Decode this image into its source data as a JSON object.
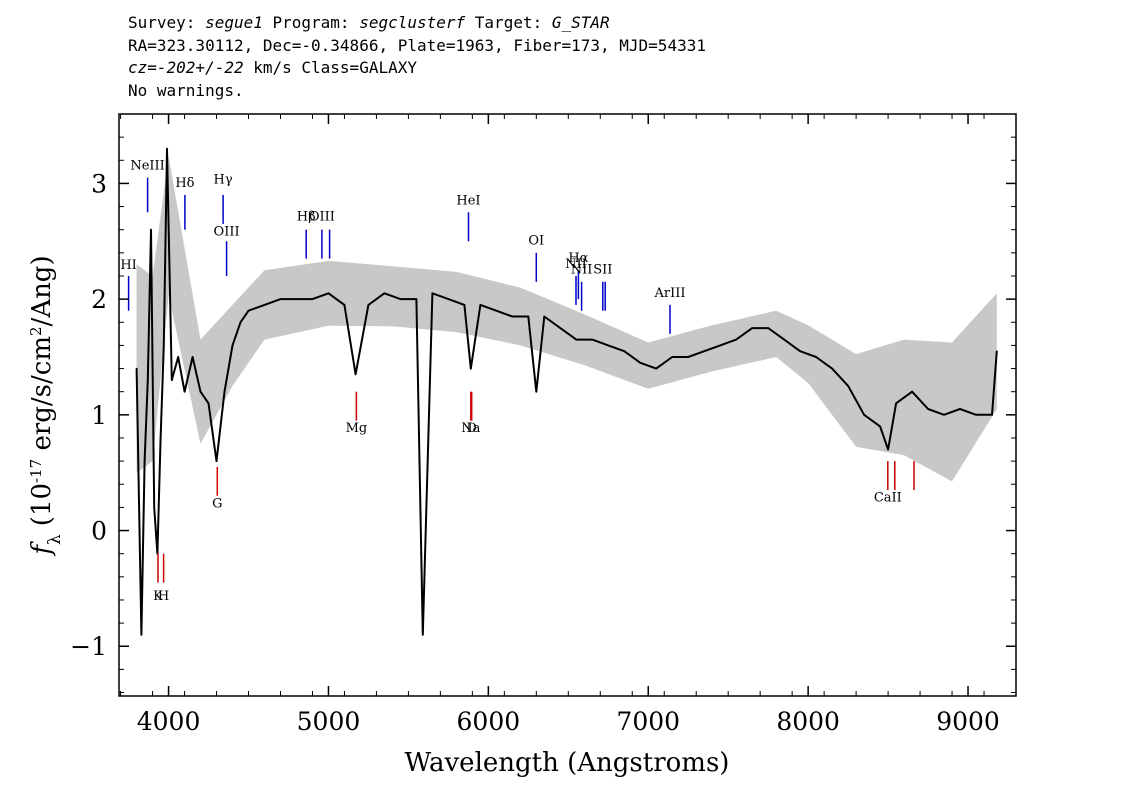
{
  "header": {
    "survey_label": "Survey: ",
    "survey": "segue1",
    "program_label": " Program: ",
    "program": "segclusterf",
    "target_label": " Target: ",
    "target": "G_STAR",
    "line2": "RA=323.30112, Dec=-0.34866, Plate=1963, Fiber=173, MJD=54331",
    "cz_prefix": "cz",
    "cz_value": "=-202+/-22",
    "cz_units": " km/s Class=GALAXY",
    "warnings": "No warnings."
  },
  "chart_data": {
    "type": "line",
    "title": "",
    "xlabel": "Wavelength (Angstroms)",
    "ylabel": "f",
    "ylabel_sub": "λ",
    "ylabel_units": "(10",
    "ylabel_exp": "-17",
    "ylabel_units2": " erg/s/cm",
    "ylabel_exp2": "2",
    "ylabel_units3": "/Ang)",
    "xlim": [
      3690,
      9300
    ],
    "ylim": [
      -1.43,
      3.6
    ],
    "x_ticks": [
      4000,
      5000,
      6000,
      7000,
      8000,
      9000
    ],
    "y_ticks": [
      -1,
      0,
      1,
      2,
      3
    ],
    "x_tick_labels": [
      "4000",
      "5000",
      "6000",
      "7000",
      "8000",
      "9000"
    ],
    "y_tick_labels": [
      "−1",
      "0",
      "1",
      "2",
      "3"
    ],
    "grid": false,
    "series": [
      {
        "role": "flux",
        "color": "#000000",
        "x": [
          3800,
          3830,
          3850,
          3870,
          3890,
          3910,
          3930,
          3950,
          3970,
          3990,
          4020,
          4060,
          4100,
          4150,
          4200,
          4250,
          4300,
          4350,
          4400,
          4450,
          4500,
          4600,
          4700,
          4800,
          4900,
          5000,
          5100,
          5170,
          5250,
          5350,
          5450,
          5550,
          5590,
          5650,
          5750,
          5850,
          5890,
          5950,
          6050,
          6150,
          6250,
          6300,
          6350,
          6450,
          6550,
          6650,
          6750,
          6850,
          6950,
          7050,
          7150,
          7250,
          7350,
          7450,
          7550,
          7650,
          7750,
          7850,
          7950,
          8050,
          8150,
          8250,
          8350,
          8450,
          8500,
          8550,
          8650,
          8750,
          8850,
          8950,
          9050,
          9150,
          9180
        ],
        "y": [
          1.4,
          -0.9,
          0.6,
          1.3,
          2.6,
          0.2,
          -0.2,
          0.8,
          1.6,
          3.3,
          1.3,
          1.5,
          1.2,
          1.5,
          1.2,
          1.1,
          0.6,
          1.2,
          1.6,
          1.8,
          1.9,
          1.95,
          2.0,
          2.0,
          2.0,
          2.05,
          1.95,
          1.35,
          1.95,
          2.05,
          2.0,
          2.0,
          -0.9,
          2.05,
          2.0,
          1.95,
          1.4,
          1.95,
          1.9,
          1.85,
          1.85,
          1.2,
          1.85,
          1.75,
          1.65,
          1.65,
          1.6,
          1.55,
          1.45,
          1.4,
          1.5,
          1.5,
          1.55,
          1.6,
          1.65,
          1.75,
          1.75,
          1.65,
          1.55,
          1.5,
          1.4,
          1.25,
          1.0,
          0.9,
          0.7,
          1.1,
          1.2,
          1.05,
          1.0,
          1.05,
          1.0,
          1.0,
          1.55
        ]
      }
    ],
    "error_band": {
      "color": "#c8c8c8",
      "x": [
        3800,
        3900,
        4000,
        4200,
        4400,
        4600,
        5000,
        5400,
        5800,
        6200,
        6600,
        7000,
        7400,
        7800,
        8000,
        8300,
        8600,
        8900,
        9180
      ],
      "half_width": [
        0.9,
        0.8,
        0.6,
        0.45,
        0.35,
        0.3,
        0.28,
        0.26,
        0.26,
        0.25,
        0.22,
        0.2,
        0.2,
        0.2,
        0.25,
        0.4,
        0.5,
        0.6,
        0.5
      ]
    },
    "emission_lines": [
      {
        "label": "HI",
        "x": 3750,
        "y1": 1.9,
        "y2": 2.2,
        "ty": 2.26,
        "color": "#0000cc"
      },
      {
        "label": "NeIII",
        "x": 3869,
        "y1": 2.75,
        "y2": 3.05,
        "ty": 3.12,
        "color": "#0000cc"
      },
      {
        "label": "Hδ",
        "x": 4102,
        "y1": 2.6,
        "y2": 2.9,
        "ty": 2.97,
        "color": "#0000cc"
      },
      {
        "label": "Hγ",
        "x": 4341,
        "y1": 2.65,
        "y2": 2.9,
        "ty": 3.0,
        "color": "#0000cc"
      },
      {
        "label": "OIII",
        "x": 4363,
        "y1": 2.2,
        "y2": 2.5,
        "ty": 2.55,
        "color": "#0000cc"
      },
      {
        "label": "Hβ",
        "x": 4861,
        "y1": 2.35,
        "y2": 2.6,
        "ty": 2.68,
        "color": "#0000cc"
      },
      {
        "label": "OIII",
        "x": 4959,
        "y1": 2.35,
        "y2": 2.6,
        "ty": 2.68,
        "color": "#0000cc"
      },
      {
        "label": "",
        "x": 5007,
        "y1": 2.35,
        "y2": 2.6,
        "ty": 2.68,
        "color": "#0000cc"
      },
      {
        "label": "HeI",
        "x": 5876,
        "y1": 2.5,
        "y2": 2.75,
        "ty": 2.82,
        "color": "#0000cc"
      },
      {
        "label": "OI",
        "x": 6300,
        "y1": 2.15,
        "y2": 2.4,
        "ty": 2.47,
        "color": "#0000cc"
      },
      {
        "label": "NII",
        "x": 6548,
        "y1": 1.95,
        "y2": 2.2,
        "ty": 2.27,
        "color": "#0000cc"
      },
      {
        "label": "Hα",
        "x": 6563,
        "y1": 2.0,
        "y2": 2.25,
        "ty": 2.32,
        "color": "#0000cc"
      },
      {
        "label": "NII",
        "x": 6583,
        "y1": 1.9,
        "y2": 2.15,
        "ty": 2.22,
        "color": "#0000cc"
      },
      {
        "label": "SII",
        "x": 6716,
        "y1": 1.9,
        "y2": 2.15,
        "ty": 2.22,
        "color": "#0000cc"
      },
      {
        "label": "",
        "x": 6731,
        "y1": 1.9,
        "y2": 2.15,
        "ty": 2.22,
        "color": "#0000cc"
      },
      {
        "label": "ArIII",
        "x": 7136,
        "y1": 1.7,
        "y2": 1.95,
        "ty": 2.02,
        "color": "#0000cc"
      }
    ],
    "absorption_lines": [
      {
        "label": "K",
        "x": 3934,
        "y1": -0.45,
        "y2": -0.2,
        "ty": -0.6,
        "color": "#cc0000"
      },
      {
        "label": "H",
        "x": 3969,
        "y1": -0.45,
        "y2": -0.2,
        "ty": -0.6,
        "color": "#cc0000"
      },
      {
        "label": "G",
        "x": 4305,
        "y1": 0.3,
        "y2": 0.55,
        "ty": 0.2,
        "color": "#cc0000"
      },
      {
        "label": "Mg",
        "x": 5175,
        "y1": 0.95,
        "y2": 1.2,
        "ty": 0.85,
        "color": "#cc0000"
      },
      {
        "label": "Na",
        "x": 5890,
        "y1": 0.95,
        "y2": 1.2,
        "ty": 0.85,
        "color": "#cc0000"
      },
      {
        "label": "D",
        "x": 5896,
        "y1": 0.95,
        "y2": 1.2,
        "ty": 0.85,
        "color": "#cc0000"
      },
      {
        "label": "CaII",
        "x": 8498,
        "y1": 0.35,
        "y2": 0.6,
        "ty": 0.25,
        "color": "#cc0000"
      },
      {
        "label": "",
        "x": 8542,
        "y1": 0.35,
        "y2": 0.6,
        "ty": 0.25,
        "color": "#cc0000"
      },
      {
        "label": "",
        "x": 8662,
        "y1": 0.35,
        "y2": 0.6,
        "ty": 0.25,
        "color": "#cc0000"
      }
    ]
  }
}
